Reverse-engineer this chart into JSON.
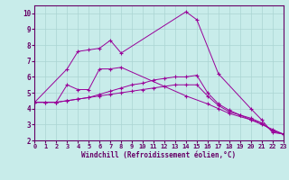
{
  "xlabel": "Windchill (Refroidissement éolien,°C)",
  "bg_color": "#c8ecea",
  "line_color": "#990099",
  "grid_color": "#aad4d2",
  "xlim": [
    0,
    23
  ],
  "ylim": [
    2,
    10.5
  ],
  "yticks": [
    2,
    3,
    4,
    5,
    6,
    7,
    8,
    9,
    10
  ],
  "xticks": [
    0,
    1,
    2,
    3,
    4,
    5,
    6,
    7,
    8,
    9,
    10,
    11,
    12,
    13,
    14,
    15,
    16,
    17,
    18,
    19,
    20,
    21,
    22,
    23
  ],
  "series1_x": [
    0,
    3,
    4,
    5,
    6,
    7,
    8,
    14,
    15,
    17,
    20,
    21,
    22,
    23
  ],
  "series1_y": [
    4.4,
    6.5,
    7.6,
    7.7,
    7.8,
    8.3,
    7.5,
    10.1,
    9.6,
    6.2,
    4.0,
    3.3,
    2.5,
    2.4
  ],
  "series2_x": [
    0,
    2,
    3,
    4,
    5,
    6,
    7,
    8,
    14,
    16,
    17,
    18,
    20,
    21,
    22,
    23
  ],
  "series2_y": [
    4.4,
    4.4,
    5.5,
    5.2,
    5.2,
    6.5,
    6.5,
    6.6,
    4.8,
    4.3,
    4.0,
    3.7,
    3.3,
    3.0,
    2.7,
    2.4
  ],
  "series3_x": [
    0,
    1,
    2,
    3,
    4,
    5,
    6,
    7,
    8,
    9,
    10,
    11,
    12,
    13,
    14,
    15,
    16,
    17,
    18,
    19,
    20,
    21,
    22,
    23
  ],
  "series3_y": [
    4.4,
    4.4,
    4.4,
    4.5,
    4.6,
    4.7,
    4.9,
    5.1,
    5.3,
    5.5,
    5.6,
    5.8,
    5.9,
    6.0,
    6.0,
    6.1,
    5.0,
    4.3,
    3.9,
    3.6,
    3.4,
    3.1,
    2.6,
    2.4
  ],
  "series4_x": [
    0,
    1,
    2,
    3,
    4,
    5,
    6,
    7,
    8,
    9,
    10,
    11,
    12,
    13,
    14,
    15,
    16,
    17,
    18,
    19,
    20,
    21,
    22,
    23
  ],
  "series4_y": [
    4.4,
    4.4,
    4.4,
    4.5,
    4.6,
    4.7,
    4.8,
    4.9,
    5.0,
    5.1,
    5.2,
    5.3,
    5.4,
    5.5,
    5.5,
    5.5,
    4.8,
    4.2,
    3.8,
    3.6,
    3.3,
    3.1,
    2.6,
    2.4
  ]
}
